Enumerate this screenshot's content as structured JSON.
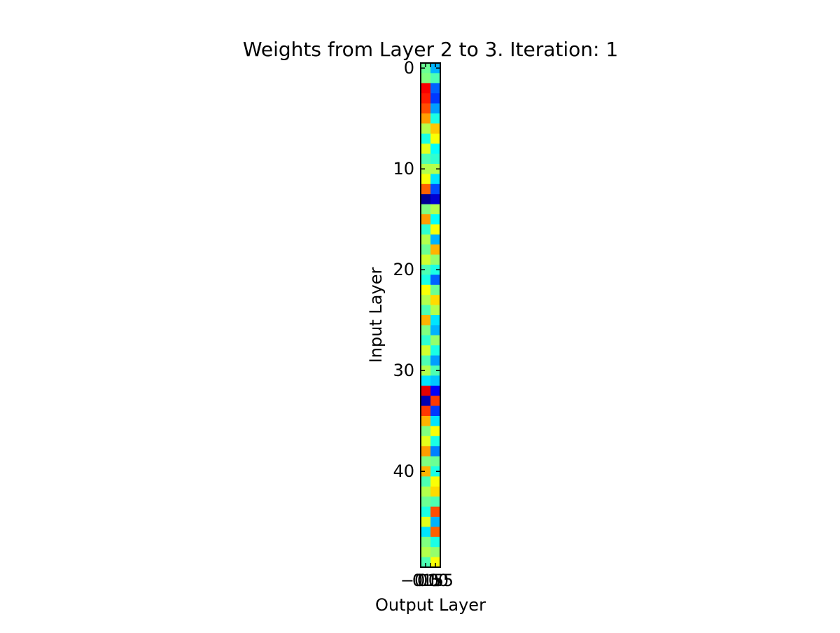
{
  "chart_data": {
    "type": "heatmap",
    "title": "Weights from Layer 2 to 3. Iteration: 1",
    "xlabel": "Output Layer",
    "ylabel": "Input Layer",
    "colormap": "jet",
    "interpolation": "bilinear",
    "xlim": [
      -0.5,
      1.5
    ],
    "ylim": [
      49.5,
      -0.5
    ],
    "x_tick_labels": [
      "−0.5",
      "0.0",
      "0.5",
      "1.0",
      "1.5"
    ],
    "x_tick_values": [
      -0.5,
      0.0,
      0.5,
      1.0,
      1.5
    ],
    "y_tick_labels": [
      "0",
      "10",
      "20",
      "30",
      "40"
    ],
    "y_tick_values": [
      0,
      10,
      20,
      30,
      40
    ],
    "columns": 2,
    "rows": 50,
    "values_normalized": [
      [
        0.48,
        0.3
      ],
      [
        0.5,
        0.45
      ],
      [
        0.88,
        0.22
      ],
      [
        0.85,
        0.18
      ],
      [
        0.8,
        0.28
      ],
      [
        0.72,
        0.4
      ],
      [
        0.55,
        0.68
      ],
      [
        0.4,
        0.62
      ],
      [
        0.6,
        0.38
      ],
      [
        0.45,
        0.42
      ],
      [
        0.55,
        0.55
      ],
      [
        0.62,
        0.35
      ],
      [
        0.78,
        0.2
      ],
      [
        0.02,
        0.08
      ],
      [
        0.5,
        0.55
      ],
      [
        0.72,
        0.38
      ],
      [
        0.42,
        0.62
      ],
      [
        0.55,
        0.3
      ],
      [
        0.48,
        0.7
      ],
      [
        0.58,
        0.52
      ],
      [
        0.45,
        0.4
      ],
      [
        0.4,
        0.22
      ],
      [
        0.62,
        0.48
      ],
      [
        0.55,
        0.66
      ],
      [
        0.45,
        0.55
      ],
      [
        0.7,
        0.35
      ],
      [
        0.5,
        0.3
      ],
      [
        0.42,
        0.52
      ],
      [
        0.58,
        0.4
      ],
      [
        0.45,
        0.28
      ],
      [
        0.55,
        0.45
      ],
      [
        0.35,
        0.32
      ],
      [
        0.9,
        0.12
      ],
      [
        0.05,
        0.82
      ],
      [
        0.82,
        0.18
      ],
      [
        0.7,
        0.35
      ],
      [
        0.5,
        0.62
      ],
      [
        0.6,
        0.4
      ],
      [
        0.72,
        0.25
      ],
      [
        0.5,
        0.48
      ],
      [
        0.7,
        0.4
      ],
      [
        0.45,
        0.62
      ],
      [
        0.55,
        0.66
      ],
      [
        0.48,
        0.45
      ],
      [
        0.4,
        0.8
      ],
      [
        0.6,
        0.3
      ],
      [
        0.35,
        0.78
      ],
      [
        0.5,
        0.4
      ],
      [
        0.55,
        0.52
      ],
      [
        0.45,
        0.62
      ]
    ]
  }
}
